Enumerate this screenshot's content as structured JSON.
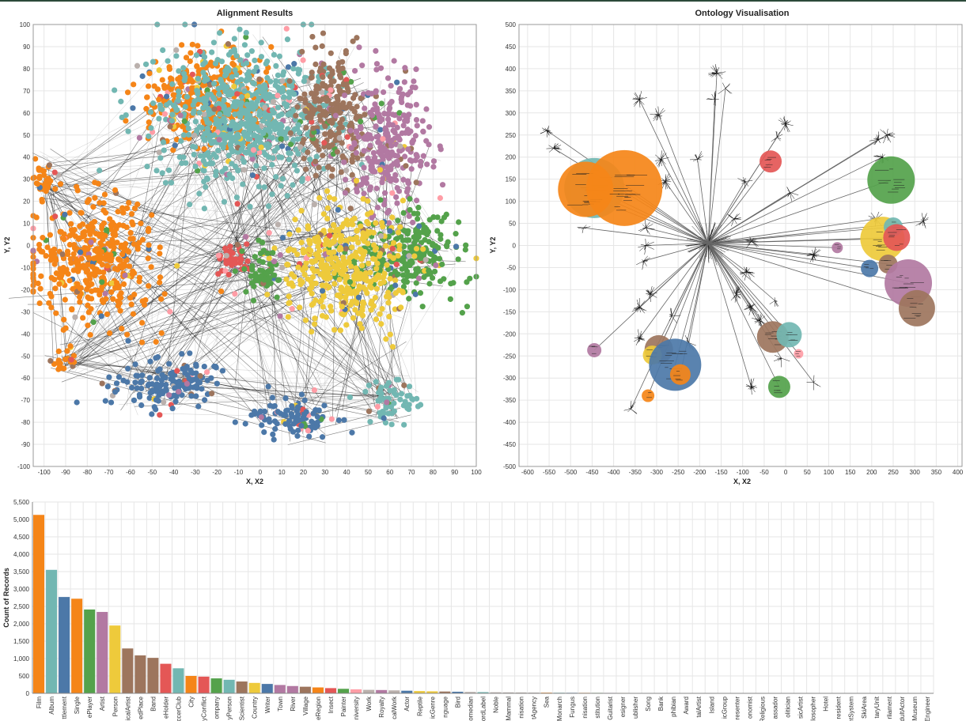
{
  "chart_data": [
    {
      "type": "scatter",
      "title": "Alignment Results",
      "xlabel": "X, X2",
      "ylabel": "Y, Y2",
      "xlim": [
        -105,
        100
      ],
      "ylim": [
        -100,
        100
      ],
      "grid": true,
      "x_ticks": [
        -100,
        -90,
        -80,
        -70,
        -60,
        -50,
        -40,
        -30,
        -20,
        -10,
        0,
        10,
        20,
        30,
        40,
        50,
        60,
        70,
        80,
        90,
        100
      ],
      "y_ticks": [
        100,
        90,
        80,
        70,
        60,
        50,
        40,
        30,
        20,
        10,
        0,
        -10,
        -20,
        -30,
        -40,
        -50,
        -60,
        -70,
        -80,
        -90,
        -100
      ],
      "clusters": [
        {
          "color": "#f58518",
          "x": -78,
          "y": -8,
          "sx": 14,
          "sy": 14
        },
        {
          "color": "#f58518",
          "x": -25,
          "y": 66,
          "sx": 15,
          "sy": 11
        },
        {
          "color": "#f58518",
          "x": -100,
          "y": 30,
          "sx": 3,
          "sy": 5
        },
        {
          "color": "#f58518",
          "x": -90,
          "y": -52,
          "sx": 3,
          "sy": 3
        },
        {
          "color": "#72b7b2",
          "x": -8,
          "y": 58,
          "sx": 20,
          "sy": 16
        },
        {
          "color": "#72b7b2",
          "x": 60,
          "y": -70,
          "sx": 6,
          "sy": 5
        },
        {
          "color": "#9d755d",
          "x": 33,
          "y": 60,
          "sx": 8,
          "sy": 14
        },
        {
          "color": "#b279a2",
          "x": 60,
          "y": 45,
          "sx": 9,
          "sy": 15
        },
        {
          "color": "#54a24b",
          "x": 68,
          "y": -5,
          "sx": 12,
          "sy": 10
        },
        {
          "color": "#eeca3b",
          "x": 38,
          "y": -10,
          "sx": 14,
          "sy": 14
        },
        {
          "color": "#4c78a8",
          "x": -45,
          "y": -62,
          "sx": 12,
          "sy": 6
        },
        {
          "color": "#4c78a8",
          "x": 15,
          "y": -78,
          "sx": 10,
          "sy": 5
        },
        {
          "color": "#e45756",
          "x": -12,
          "y": -5,
          "sx": 4,
          "sy": 5
        },
        {
          "color": "#54a24b",
          "x": 2,
          "y": -12,
          "sx": 5,
          "sy": 6
        }
      ]
    },
    {
      "type": "scatter",
      "title": "Ontology Visualisation",
      "xlabel": "X, X2",
      "ylabel": "Y, Y2",
      "xlim": [
        -620,
        410
      ],
      "ylim": [
        -500,
        500
      ],
      "grid": true,
      "x_ticks": [
        -600,
        -550,
        -500,
        -450,
        -400,
        -350,
        -300,
        -250,
        -200,
        -150,
        -100,
        -50,
        0,
        50,
        100,
        150,
        200,
        250,
        300,
        350,
        400
      ],
      "y_ticks": [
        500,
        450,
        400,
        350,
        300,
        250,
        200,
        150,
        100,
        50,
        0,
        -50,
        -100,
        -150,
        -200,
        -250,
        -300,
        -350,
        -400,
        -450,
        -500
      ],
      "center": [
        -180,
        5
      ],
      "bubbles": [
        {
          "x": -445,
          "y": 130,
          "r": 38,
          "color": "#72b7b2"
        },
        {
          "x": -465,
          "y": 127,
          "r": 35,
          "color": "#f58518"
        },
        {
          "x": -375,
          "y": 130,
          "r": 48,
          "color": "#f58518"
        },
        {
          "x": -35,
          "y": 190,
          "r": 14,
          "color": "#e45756"
        },
        {
          "x": 245,
          "y": 148,
          "r": 30,
          "color": "#54a24b"
        },
        {
          "x": 225,
          "y": 15,
          "r": 28,
          "color": "#eeca3b"
        },
        {
          "x": 250,
          "y": 42,
          "r": 12,
          "color": "#72b7b2"
        },
        {
          "x": 258,
          "y": 18,
          "r": 17,
          "color": "#e45756"
        },
        {
          "x": 238,
          "y": -42,
          "r": 12,
          "color": "#9d755d"
        },
        {
          "x": 195,
          "y": -52,
          "r": 11,
          "color": "#4c78a8"
        },
        {
          "x": 285,
          "y": -85,
          "r": 30,
          "color": "#b279a2"
        },
        {
          "x": 305,
          "y": -142,
          "r": 23,
          "color": "#9d755d"
        },
        {
          "x": -30,
          "y": -207,
          "r": 20,
          "color": "#9d755d"
        },
        {
          "x": 8,
          "y": -202,
          "r": 16,
          "color": "#72b7b2"
        },
        {
          "x": -15,
          "y": -320,
          "r": 14,
          "color": "#54a24b"
        },
        {
          "x": -295,
          "y": -235,
          "r": 18,
          "color": "#9d755d"
        },
        {
          "x": -310,
          "y": -248,
          "r": 12,
          "color": "#eeca3b"
        },
        {
          "x": -257,
          "y": -270,
          "r": 33,
          "color": "#4c78a8"
        },
        {
          "x": -245,
          "y": -292,
          "r": 13,
          "color": "#f58518"
        },
        {
          "x": -445,
          "y": -237,
          "r": 9,
          "color": "#b279a2"
        },
        {
          "x": -320,
          "y": -340,
          "r": 8,
          "color": "#f58518"
        },
        {
          "x": 120,
          "y": -5,
          "r": 7,
          "color": "#b279a2"
        },
        {
          "x": 30,
          "y": -245,
          "r": 6,
          "color": "#ff9da6"
        }
      ],
      "hubs": [
        [
          -540,
          220
        ],
        [
          -555,
          260
        ],
        [
          -340,
          330
        ],
        [
          -295,
          295
        ],
        [
          -160,
          390
        ],
        [
          -165,
          330
        ],
        [
          -140,
          355
        ],
        [
          -205,
          195
        ],
        [
          -280,
          145
        ],
        [
          -290,
          195
        ],
        [
          -325,
          40
        ],
        [
          -325,
          0
        ],
        [
          -330,
          -35
        ],
        [
          -315,
          -110
        ],
        [
          -340,
          -140
        ],
        [
          -265,
          -160
        ],
        [
          -225,
          -220
        ],
        [
          -340,
          -210
        ],
        [
          -360,
          -370
        ],
        [
          -95,
          145
        ],
        [
          -120,
          60
        ],
        [
          -80,
          10
        ],
        [
          -90,
          -60
        ],
        [
          -115,
          -110
        ],
        [
          -80,
          -140
        ],
        [
          -60,
          -170
        ],
        [
          -10,
          -255
        ],
        [
          -80,
          -320
        ],
        [
          65,
          -310
        ],
        [
          -20,
          245
        ],
        [
          0,
          275
        ],
        [
          10,
          120
        ],
        [
          -25,
          -125
        ],
        [
          65,
          -20
        ],
        [
          235,
          250
        ],
        [
          215,
          240
        ],
        [
          225,
          200
        ],
        [
          320,
          55
        ],
        [
          210,
          60
        ],
        [
          -430,
          100
        ],
        [
          -470,
          40
        ]
      ]
    },
    {
      "type": "bar",
      "title": "",
      "xlabel": "",
      "ylabel": "Count of Records",
      "ylim": [
        0,
        5500
      ],
      "y_ticks": [
        0,
        500,
        1000,
        1500,
        2000,
        2500,
        3000,
        3500,
        4000,
        4500,
        5000,
        5500
      ],
      "y_tick_labels": [
        "0",
        "500",
        "1,000",
        "1,500",
        "2,000",
        "2,500",
        "3,000",
        "3,500",
        "4,000",
        "4,500",
        "5,000",
        "5,500"
      ],
      "categories": [
        "Film",
        "Album",
        "ttlement",
        "Single",
        "ePlayer",
        "Artist",
        "Person",
        "icalArtist",
        "edPlace",
        "Band",
        "eHolder",
        "ccerClub",
        "City",
        "yConflict",
        "ompany",
        "yPerson",
        "Scientist",
        "Country",
        "Writer",
        "Town",
        "River",
        "Village",
        "eRegion",
        "Insect",
        "Painter",
        "niversity",
        "Work",
        "Royalty",
        "calWork",
        "Actor",
        "Reptile",
        "icGenre",
        "nguage",
        "Bird",
        "omedian",
        "ordLabel",
        "Noble",
        "Mammal",
        "nisation",
        "tAgency",
        "Sea",
        "Monarch",
        "Fungus",
        "nisation",
        "stitution",
        "Guitarist",
        "esigner",
        "ublisher",
        "Song",
        "Bank",
        "phibian",
        "Award",
        "talArtist",
        "Island",
        "icGroup",
        "resenter",
        "onomist",
        "Religious",
        "assador",
        "olitician",
        "sicArtist",
        "losopher",
        "Hotel",
        "resident",
        "ntSystem",
        "SkiArea",
        "taryUnit",
        "rliament",
        "dultActor",
        "Museum",
        "Engineer"
      ],
      "values": [
        5130,
        3550,
        2770,
        2720,
        2410,
        2340,
        1950,
        1290,
        1090,
        1020,
        850,
        720,
        500,
        480,
        430,
        390,
        340,
        300,
        270,
        240,
        210,
        190,
        170,
        150,
        130,
        115,
        100,
        95,
        85,
        75,
        65,
        58,
        52,
        46,
        40,
        35,
        31,
        28,
        25,
        22,
        20,
        18,
        16,
        15,
        14,
        13,
        12,
        11,
        10,
        9,
        9,
        8,
        8,
        7,
        7,
        6,
        6,
        6,
        5,
        5,
        5,
        4,
        4,
        4,
        4,
        3,
        3,
        3,
        3,
        3,
        3
      ],
      "palette": [
        "#f58518",
        "#72b7b2",
        "#4c78a8",
        "#f58518",
        "#54a24b",
        "#b279a2",
        "#eeca3b",
        "#9d755d",
        "#9d755d",
        "#9d755d",
        "#e45756",
        "#72b7b2",
        "#f58518",
        "#e45756",
        "#54a24b",
        "#72b7b2",
        "#9d755d",
        "#eeca3b",
        "#4c78a8",
        "#b279a2",
        "#b279a2",
        "#9d755d",
        "#f58518",
        "#e45756",
        "#54a24b",
        "#ff9da6",
        "#bab0ac",
        "#b279a2",
        "#bab0ac",
        "#4c78a8",
        "#eeca3b",
        "#eeca3b",
        "#9d755d",
        "#4c78a8",
        "#bab0ac",
        "#72b7b2",
        "#bab0ac",
        "#bab0ac",
        "#bab0ac",
        "#bab0ac"
      ]
    }
  ]
}
